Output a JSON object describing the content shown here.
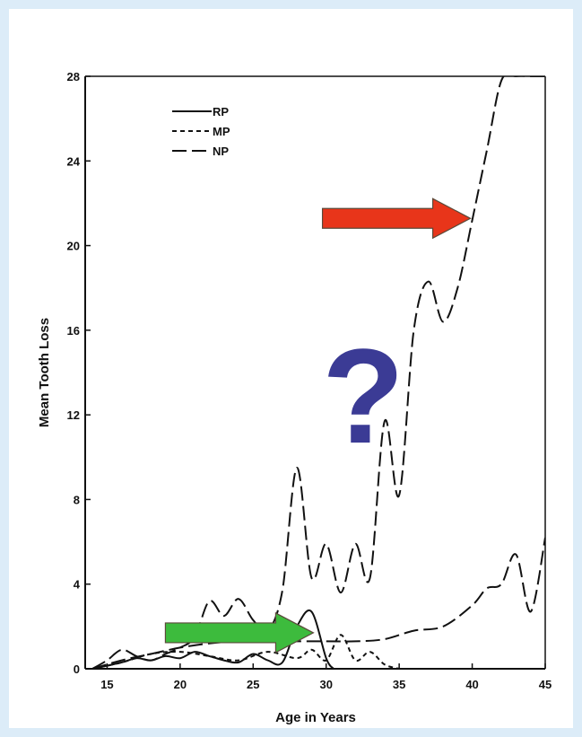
{
  "chart_data": {
    "type": "line",
    "title": "",
    "xlabel": "Age in Years",
    "ylabel": "Mean Tooth Loss",
    "xlim": [
      13.5,
      45
    ],
    "ylim": [
      0,
      28
    ],
    "x_ticks": [
      15,
      20,
      25,
      30,
      35,
      40,
      45
    ],
    "y_ticks": [
      0,
      4,
      8,
      12,
      16,
      20,
      24,
      28
    ],
    "grid": false,
    "legend_position": "top-left",
    "series": [
      {
        "name": "RP",
        "dash": "solid",
        "x": [
          14,
          16,
          17,
          18,
          19,
          20,
          21,
          22,
          23,
          24,
          25,
          26,
          27,
          28,
          29,
          30,
          30.5
        ],
        "y": [
          0,
          0.3,
          0.5,
          0.4,
          0.6,
          0.5,
          0.8,
          0.6,
          0.4,
          0.3,
          0.7,
          0.4,
          0.3,
          2.0,
          2.7,
          0.5,
          0
        ]
      },
      {
        "name": "MP",
        "dash": "short",
        "x": [
          14,
          16,
          18,
          20,
          22,
          24,
          26,
          28,
          29,
          30,
          31,
          32,
          33,
          34,
          35
        ],
        "y": [
          0,
          0.3,
          0.7,
          0.8,
          0.6,
          0.4,
          0.8,
          0.5,
          0.9,
          0.4,
          1.6,
          0.4,
          0.8,
          0.2,
          0
        ]
      },
      {
        "name": "NP",
        "dash": "long",
        "x": [
          14,
          15,
          16,
          17,
          18,
          19,
          20,
          21,
          22,
          23,
          24,
          25,
          26,
          27,
          28,
          29,
          30,
          31,
          32,
          33,
          34,
          35,
          36,
          37,
          38,
          39,
          40,
          41,
          42,
          43,
          44,
          45
        ],
        "y": [
          0,
          0.4,
          0.9,
          0.6,
          0.4,
          0.7,
          1.0,
          1.5,
          3.2,
          2.5,
          3.3,
          2.3,
          1.8,
          3.7,
          9.5,
          4.3,
          5.9,
          3.6,
          5.9,
          4.3,
          11.7,
          8.2,
          16.0,
          18.3,
          16.4,
          18.0,
          21.2,
          24.5,
          27.8,
          28,
          28,
          28
        ]
      },
      {
        "name": "",
        "dash": "long",
        "x": [
          14,
          16,
          18,
          20,
          22,
          24,
          26,
          28,
          30,
          32,
          34,
          36,
          38,
          40,
          41,
          42,
          43,
          44,
          45
        ],
        "y": [
          0,
          0.4,
          0.7,
          1.0,
          1.2,
          1.3,
          1.3,
          1.3,
          1.3,
          1.3,
          1.4,
          1.8,
          2.0,
          3.0,
          3.8,
          4.0,
          5.4,
          2.7,
          6.2
        ]
      }
    ],
    "annotations": [
      {
        "type": "arrow",
        "color": "#e8351a",
        "target_x": 40,
        "target_y": 21.2
      },
      {
        "type": "arrow",
        "color": "#3dbb3d",
        "target_x": 29,
        "target_y": 1.7
      },
      {
        "type": "text",
        "text": "?",
        "color": "#3b3b95"
      }
    ]
  }
}
